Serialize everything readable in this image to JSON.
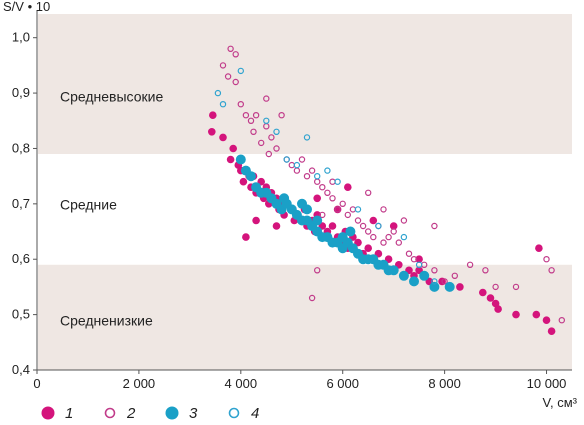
{
  "chart_data": {
    "type": "scatter",
    "xlabel": "V, см³",
    "ylabel": "S/V • 10",
    "xlim": [
      0,
      10500
    ],
    "ylim": [
      0.4,
      1.05
    ],
    "x_ticks": [
      {
        "value": 0,
        "label": "0"
      },
      {
        "value": 2000,
        "label": "2 000"
      },
      {
        "value": 4000,
        "label": "4 000"
      },
      {
        "value": 6000,
        "label": "6 000"
      },
      {
        "value": 8000,
        "label": "8 000"
      },
      {
        "value": 10000,
        "label": "10 000"
      }
    ],
    "y_ticks": [
      {
        "value": 0.4,
        "label": "0,4"
      },
      {
        "value": 0.5,
        "label": "0,5"
      },
      {
        "value": 0.6,
        "label": "0,6"
      },
      {
        "value": 0.7,
        "label": "0,7"
      },
      {
        "value": 0.8,
        "label": "0,8"
      },
      {
        "value": 0.9,
        "label": "0,9"
      },
      {
        "value": 1.0,
        "label": "1,0"
      }
    ],
    "bands": [
      {
        "label": "Средневысокие",
        "y0": 0.79,
        "y1": 1.09,
        "label_y": 0.885,
        "color": "#efe7e3"
      },
      {
        "label": "Средние",
        "y0": 0.59,
        "y1": 0.79,
        "label_y": 0.69,
        "color": "#ffffff"
      },
      {
        "label": "Средненизкие",
        "y0": 0.39,
        "y1": 0.59,
        "label_y": 0.48,
        "color": "#efe7e3"
      }
    ],
    "series": [
      {
        "name": "1",
        "color": "#d4147c",
        "filled": true,
        "points": [
          [
            3450,
            0.86
          ],
          [
            3430,
            0.83
          ],
          [
            3650,
            0.82
          ],
          [
            3800,
            0.78
          ],
          [
            3850,
            0.8
          ],
          [
            3950,
            0.77
          ],
          [
            4000,
            0.76
          ],
          [
            4050,
            0.74
          ],
          [
            4100,
            0.76
          ],
          [
            4200,
            0.73
          ],
          [
            4250,
            0.75
          ],
          [
            4300,
            0.72
          ],
          [
            4400,
            0.74
          ],
          [
            4450,
            0.71
          ],
          [
            4500,
            0.73
          ],
          [
            4550,
            0.7
          ],
          [
            4600,
            0.72
          ],
          [
            4700,
            0.71
          ],
          [
            4750,
            0.69
          ],
          [
            4800,
            0.7
          ],
          [
            4850,
            0.68
          ],
          [
            4900,
            0.7
          ],
          [
            5000,
            0.69
          ],
          [
            5050,
            0.67
          ],
          [
            5100,
            0.68
          ],
          [
            5200,
            0.67
          ],
          [
            5250,
            0.69
          ],
          [
            5300,
            0.66
          ],
          [
            5400,
            0.67
          ],
          [
            5450,
            0.65
          ],
          [
            5500,
            0.68
          ],
          [
            5600,
            0.66
          ],
          [
            5650,
            0.64
          ],
          [
            5700,
            0.65
          ],
          [
            5800,
            0.66
          ],
          [
            5900,
            0.64
          ],
          [
            6000,
            0.63
          ],
          [
            6050,
            0.65
          ],
          [
            6100,
            0.62
          ],
          [
            6200,
            0.64
          ],
          [
            6300,
            0.63
          ],
          [
            6400,
            0.61
          ],
          [
            6500,
            0.62
          ],
          [
            6600,
            0.6
          ],
          [
            6700,
            0.61
          ],
          [
            6800,
            0.59
          ],
          [
            6900,
            0.6
          ],
          [
            7000,
            0.58
          ],
          [
            7100,
            0.59
          ],
          [
            7200,
            0.57
          ],
          [
            7300,
            0.58
          ],
          [
            7400,
            0.57
          ],
          [
            7500,
            0.58
          ],
          [
            7600,
            0.57
          ],
          [
            7700,
            0.56
          ],
          [
            7800,
            0.55
          ],
          [
            7950,
            0.56
          ],
          [
            8100,
            0.55
          ],
          [
            8300,
            0.55
          ],
          [
            8750,
            0.54
          ],
          [
            8900,
            0.53
          ],
          [
            9000,
            0.52
          ],
          [
            9050,
            0.51
          ],
          [
            9400,
            0.5
          ],
          [
            9800,
            0.5
          ],
          [
            9850,
            0.62
          ],
          [
            10000,
            0.49
          ],
          [
            10100,
            0.47
          ],
          [
            4300,
            0.67
          ],
          [
            4100,
            0.64
          ],
          [
            5500,
            0.71
          ],
          [
            6600,
            0.67
          ],
          [
            7000,
            0.66
          ],
          [
            7500,
            0.6
          ],
          [
            5900,
            0.69
          ],
          [
            6100,
            0.73
          ],
          [
            4700,
            0.66
          ]
        ]
      },
      {
        "name": "2",
        "color": "#c13b8a",
        "filled": false,
        "points": [
          [
            3800,
            0.98
          ],
          [
            3650,
            0.95
          ],
          [
            3750,
            0.93
          ],
          [
            3900,
            0.97
          ],
          [
            4000,
            0.88
          ],
          [
            4100,
            0.86
          ],
          [
            4200,
            0.85
          ],
          [
            4250,
            0.83
          ],
          [
            4300,
            0.86
          ],
          [
            4400,
            0.81
          ],
          [
            4500,
            0.84
          ],
          [
            4550,
            0.79
          ],
          [
            4600,
            0.82
          ],
          [
            4700,
            0.8
          ],
          [
            4800,
            0.86
          ],
          [
            4900,
            0.78
          ],
          [
            5000,
            0.77
          ],
          [
            5100,
            0.76
          ],
          [
            5200,
            0.78
          ],
          [
            5300,
            0.75
          ],
          [
            5400,
            0.76
          ],
          [
            5500,
            0.74
          ],
          [
            5600,
            0.73
          ],
          [
            5700,
            0.72
          ],
          [
            5800,
            0.71
          ],
          [
            5900,
            0.69
          ],
          [
            6000,
            0.7
          ],
          [
            6100,
            0.68
          ],
          [
            6200,
            0.69
          ],
          [
            6300,
            0.67
          ],
          [
            6400,
            0.66
          ],
          [
            6500,
            0.65
          ],
          [
            6600,
            0.64
          ],
          [
            6700,
            0.66
          ],
          [
            6800,
            0.63
          ],
          [
            6900,
            0.64
          ],
          [
            7000,
            0.65
          ],
          [
            7100,
            0.63
          ],
          [
            7300,
            0.61
          ],
          [
            7400,
            0.6
          ],
          [
            7600,
            0.59
          ],
          [
            7800,
            0.58
          ],
          [
            8000,
            0.56
          ],
          [
            8200,
            0.57
          ],
          [
            8500,
            0.59
          ],
          [
            8800,
            0.58
          ],
          [
            9000,
            0.55
          ],
          [
            9400,
            0.55
          ],
          [
            10000,
            0.6
          ],
          [
            10100,
            0.58
          ],
          [
            10300,
            0.49
          ],
          [
            5500,
            0.58
          ],
          [
            5400,
            0.53
          ],
          [
            5600,
            0.68
          ],
          [
            6800,
            0.69
          ],
          [
            7200,
            0.67
          ],
          [
            7800,
            0.66
          ],
          [
            5800,
            0.74
          ],
          [
            4500,
            0.89
          ],
          [
            3900,
            0.92
          ],
          [
            4150,
            0.75
          ],
          [
            6500,
            0.72
          ]
        ]
      },
      {
        "name": "3",
        "color": "#1aa0c7",
        "filled": true,
        "points": [
          [
            4000,
            0.78
          ],
          [
            4100,
            0.76
          ],
          [
            4200,
            0.75
          ],
          [
            4300,
            0.73
          ],
          [
            4400,
            0.72
          ],
          [
            4500,
            0.72
          ],
          [
            4600,
            0.71
          ],
          [
            4700,
            0.7
          ],
          [
            4800,
            0.69
          ],
          [
            4900,
            0.7
          ],
          [
            5000,
            0.69
          ],
          [
            5100,
            0.68
          ],
          [
            5200,
            0.67
          ],
          [
            5300,
            0.67
          ],
          [
            5400,
            0.66
          ],
          [
            5500,
            0.65
          ],
          [
            5600,
            0.64
          ],
          [
            5700,
            0.64
          ],
          [
            5800,
            0.63
          ],
          [
            5900,
            0.63
          ],
          [
            6000,
            0.62
          ],
          [
            6100,
            0.63
          ],
          [
            6200,
            0.62
          ],
          [
            6300,
            0.61
          ],
          [
            6400,
            0.6
          ],
          [
            6500,
            0.6
          ],
          [
            6600,
            0.6
          ],
          [
            6700,
            0.59
          ],
          [
            6800,
            0.59
          ],
          [
            6900,
            0.58
          ],
          [
            7000,
            0.58
          ],
          [
            7200,
            0.57
          ],
          [
            7400,
            0.56
          ],
          [
            7600,
            0.57
          ],
          [
            7800,
            0.55
          ],
          [
            8100,
            0.55
          ],
          [
            5300,
            0.69
          ],
          [
            5500,
            0.67
          ],
          [
            6000,
            0.64
          ],
          [
            5200,
            0.7
          ],
          [
            4850,
            0.71
          ],
          [
            6150,
            0.65
          ]
        ]
      },
      {
        "name": "4",
        "color": "#2fa3cf",
        "filled": false,
        "points": [
          [
            3550,
            0.9
          ],
          [
            3650,
            0.88
          ],
          [
            4000,
            0.94
          ],
          [
            4500,
            0.85
          ],
          [
            4700,
            0.83
          ],
          [
            4900,
            0.78
          ],
          [
            5100,
            0.77
          ],
          [
            5300,
            0.82
          ],
          [
            5500,
            0.75
          ],
          [
            5700,
            0.76
          ],
          [
            5900,
            0.74
          ],
          [
            6300,
            0.69
          ],
          [
            6700,
            0.66
          ],
          [
            7200,
            0.64
          ],
          [
            7500,
            0.59
          ],
          [
            7800,
            0.56
          ]
        ]
      }
    ]
  }
}
